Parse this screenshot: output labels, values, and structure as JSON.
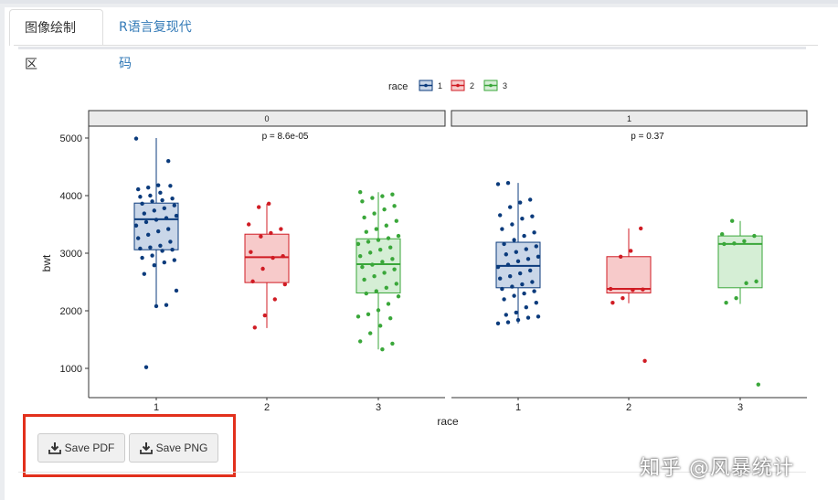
{
  "tabs": [
    {
      "label": "图像绘制区",
      "active": true
    },
    {
      "label": "R语言复现代码",
      "active": false
    }
  ],
  "chart_data": {
    "type": "boxplot",
    "xlabel": "race",
    "ylabel": "bwt",
    "ylim": [
      500,
      5300
    ],
    "yticks": [
      1000,
      2000,
      3000,
      4000,
      5000
    ],
    "categories": [
      "1",
      "2",
      "3"
    ],
    "legend": {
      "title": "race",
      "position": "top",
      "entries": [
        "1",
        "2",
        "3"
      ]
    },
    "colors": {
      "1": "#0b3b7c",
      "2": "#d01c24",
      "3": "#3aa73a"
    },
    "fills": {
      "1": "#c9d6e8",
      "2": "#f7caca",
      "3": "#d5eed5"
    },
    "facets": [
      {
        "label": "0",
        "pvalue": "p = 8.6e-05",
        "boxes": [
          {
            "race": "1",
            "min": 2090,
            "q1": 3060,
            "median": 3590,
            "q3": 3870,
            "max": 5000,
            "points": [
              4990,
              4600,
              4180,
              4140,
              4110,
              4170,
              4050,
              4000,
              3980,
              3950,
              3920,
              3900,
              3860,
              3830,
              3780,
              3740,
              3690,
              3650,
              3610,
              3580,
              3540,
              3480,
              3420,
              3380,
              3320,
              3260,
              3200,
              3130,
              3100,
              3080,
              3060,
              3040,
              2960,
              2920,
              2880,
              2840,
              2790,
              2640,
              2350,
              2100,
              2080,
              1020
            ]
          },
          {
            "race": "2",
            "min": 1700,
            "q1": 2490,
            "median": 2930,
            "q3": 3330,
            "max": 3860,
            "points": [
              3860,
              3800,
              3500,
              3420,
              3350,
              3290,
              3020,
              2950,
              2920,
              2730,
              2510,
              2460,
              2200,
              1920,
              1710
            ]
          },
          {
            "race": "3",
            "min": 1330,
            "q1": 2310,
            "median": 2810,
            "q3": 3250,
            "max": 4060,
            "points": [
              4060,
              4020,
              3990,
              3960,
              3900,
              3820,
              3760,
              3690,
              3620,
              3560,
              3480,
              3420,
              3370,
              3300,
              3260,
              3230,
              3200,
              3160,
              3100,
              3060,
              3010,
              2950,
              2900,
              2850,
              2800,
              2760,
              2720,
              2660,
              2600,
              2540,
              2470,
              2400,
              2340,
              2300,
              2250,
              2120,
              2010,
              1940,
              1900,
              1870,
              1740,
              1610,
              1470,
              1430,
              1330
            ]
          }
        ]
      },
      {
        "label": "1",
        "pvalue": "p = 0.37",
        "boxes": [
          {
            "race": "1",
            "min": 1780,
            "q1": 2400,
            "median": 2780,
            "q3": 3190,
            "max": 4220,
            "points": [
              4220,
              4200,
              3930,
              3880,
              3800,
              3660,
              3640,
              3600,
              3500,
              3420,
              3360,
              3300,
              3230,
              3160,
              3120,
              3070,
              3020,
              2980,
              2940,
              2900,
              2860,
              2800,
              2760,
              2700,
              2650,
              2600,
              2560,
              2500,
              2460,
              2420,
              2380,
              2340,
              2300,
              2260,
              2200,
              2140,
              2060,
              1970,
              1930,
              1900,
              1880,
              1840,
              1800,
              1780
            ]
          },
          {
            "race": "2",
            "min": 2130,
            "q1": 2310,
            "median": 2380,
            "q3": 2940,
            "max": 3430,
            "points": [
              3430,
              3040,
              2940,
              2380,
              2370,
              2360,
              2220,
              2140,
              1130
            ]
          },
          {
            "race": "3",
            "min": 2120,
            "q1": 2400,
            "median": 3160,
            "q3": 3300,
            "max": 3560,
            "points": [
              3560,
              3330,
              3300,
              3210,
              3170,
              3160,
              2510,
              2480,
              2220,
              2140,
              720
            ]
          }
        ]
      }
    ]
  },
  "buttons": {
    "save_pdf": "Save PDF",
    "save_png": "Save PNG"
  },
  "watermark": "知乎 @风暴统计"
}
